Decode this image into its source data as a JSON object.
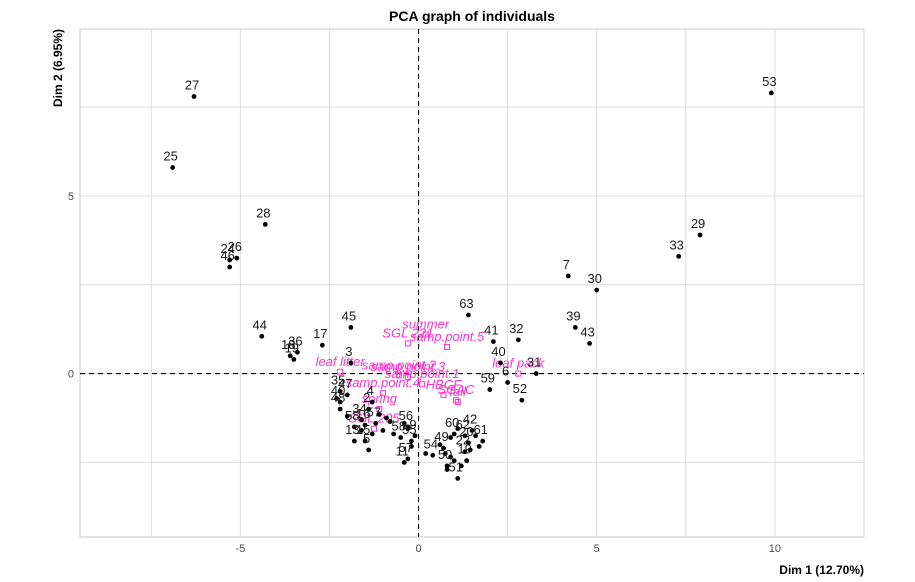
{
  "chart_data": {
    "type": "scatter",
    "title": "PCA graph of individuals",
    "xlabel": "Dim 1 (12.70%)",
    "ylabel": "Dim 2 (6.95%)",
    "xlim": [
      -9.5,
      12.5
    ],
    "ylim": [
      -4.6,
      9.7
    ],
    "xticks": [
      -5,
      0,
      5,
      10
    ],
    "yticks": [
      0,
      5
    ],
    "grid": true,
    "reference_lines": {
      "x": 0,
      "y": 0
    },
    "colors": {
      "individuals": "#000000",
      "supplementary": "#ff33cc",
      "grid": "#dcdcdc"
    },
    "individuals": [
      {
        "label": "27",
        "x": -6.3,
        "y": 7.8
      },
      {
        "label": "25",
        "x": -6.9,
        "y": 5.8
      },
      {
        "label": "28",
        "x": -4.3,
        "y": 4.2
      },
      {
        "label": "26",
        "x": -5.1,
        "y": 3.25
      },
      {
        "label": "24",
        "x": -5.3,
        "y": 3.2
      },
      {
        "label": "46",
        "x": -5.3,
        "y": 3.0
      },
      {
        "label": "44",
        "x": -4.4,
        "y": 1.05
      },
      {
        "label": "18",
        "x": -3.6,
        "y": 0.5
      },
      {
        "label": "36",
        "x": -3.4,
        "y": 0.6
      },
      {
        "label": "19",
        "x": -3.5,
        "y": 0.4
      },
      {
        "label": "17",
        "x": -2.7,
        "y": 0.8
      },
      {
        "label": "45",
        "x": -1.9,
        "y": 1.3
      },
      {
        "label": "3",
        "x": -1.9,
        "y": 0.3
      },
      {
        "label": "35",
        "x": -2.2,
        "y": -0.5
      },
      {
        "label": "47",
        "x": -2.0,
        "y": -0.6
      },
      {
        "label": "40",
        "x": -2.2,
        "y": -0.8
      },
      {
        "label": "48",
        "x": -2.2,
        "y": -1.0
      },
      {
        "label": "4",
        "x": -1.3,
        "y": -0.8
      },
      {
        "label": "2",
        "x": -1.4,
        "y": -1.0
      },
      {
        "label": "34",
        "x": -1.6,
        "y": -1.3
      },
      {
        "label": "58",
        "x": -1.8,
        "y": -1.5
      },
      {
        "label": "16",
        "x": -1.5,
        "y": -1.45
      },
      {
        "label": "57",
        "x": -1.2,
        "y": -1.4
      },
      {
        "label": "13",
        "x": -1.8,
        "y": -1.9
      },
      {
        "label": "15",
        "x": -1.5,
        "y": -1.9
      },
      {
        "label": "5",
        "x": -1.4,
        "y": -2.15
      },
      {
        "label": "56",
        "x": -0.3,
        "y": -1.5
      },
      {
        "label": "58",
        "x": -0.5,
        "y": -1.8
      },
      {
        "label": "55",
        "x": -0.2,
        "y": -1.9
      },
      {
        "label": "57",
        "x": -0.3,
        "y": -2.4
      },
      {
        "label": "11",
        "x": -0.4,
        "y": -2.5
      },
      {
        "label": "9",
        "x": -0.1,
        "y": -1.75
      },
      {
        "label": "54",
        "x": 0.4,
        "y": -2.3
      },
      {
        "label": "49",
        "x": 0.7,
        "y": -2.1
      },
      {
        "label": "50",
        "x": 0.8,
        "y": -2.6
      },
      {
        "label": "51",
        "x": 1.1,
        "y": -2.95
      },
      {
        "label": "60",
        "x": 1.0,
        "y": -1.7
      },
      {
        "label": "62",
        "x": 1.3,
        "y": -1.75
      },
      {
        "label": "20",
        "x": 1.4,
        "y": -1.95
      },
      {
        "label": "22",
        "x": 1.3,
        "y": -2.2
      },
      {
        "label": "19",
        "x": 1.35,
        "y": -2.45
      },
      {
        "label": "42",
        "x": 1.5,
        "y": -1.6
      },
      {
        "label": "61",
        "x": 1.8,
        "y": -1.9
      },
      {
        "label": "59",
        "x": 2.0,
        "y": -0.45
      },
      {
        "label": "6",
        "x": 2.5,
        "y": -0.25
      },
      {
        "label": "52",
        "x": 2.9,
        "y": -0.75
      },
      {
        "label": "31",
        "x": 3.3,
        "y": 0.0
      },
      {
        "label": "40",
        "x": 2.3,
        "y": 0.3
      },
      {
        "label": "41",
        "x": 2.1,
        "y": 0.9
      },
      {
        "label": "63",
        "x": 1.4,
        "y": 1.65
      },
      {
        "label": "32",
        "x": 2.8,
        "y": 0.95
      },
      {
        "label": "39",
        "x": 4.4,
        "y": 1.3
      },
      {
        "label": "43",
        "x": 4.8,
        "y": 0.85
      },
      {
        "label": "7",
        "x": 4.2,
        "y": 2.75
      },
      {
        "label": "30",
        "x": 5.0,
        "y": 2.35
      },
      {
        "label": "33",
        "x": 7.3,
        "y": 3.3
      },
      {
        "label": "29",
        "x": 7.9,
        "y": 3.9
      },
      {
        "label": "53",
        "x": 9.9,
        "y": 7.9
      }
    ],
    "unlabeled_points": [
      {
        "x": -1.1,
        "y": -1.15
      },
      {
        "x": -0.9,
        "y": -1.25
      },
      {
        "x": -0.8,
        "y": -1.35
      },
      {
        "x": -1.0,
        "y": -1.6
      },
      {
        "x": -0.7,
        "y": -1.7
      },
      {
        "x": -1.3,
        "y": -1.7
      },
      {
        "x": -1.6,
        "y": -1.6
      },
      {
        "x": -0.4,
        "y": -1.4
      },
      {
        "x": -0.3,
        "y": -1.55
      },
      {
        "x": -2.0,
        "y": -1.2
      },
      {
        "x": -2.3,
        "y": -0.7
      },
      {
        "x": 0.9,
        "y": -1.8
      },
      {
        "x": 1.1,
        "y": -1.55
      },
      {
        "x": 1.6,
        "y": -1.75
      },
      {
        "x": 1.7,
        "y": -2.05
      },
      {
        "x": 0.6,
        "y": -2.0
      },
      {
        "x": 0.75,
        "y": -2.25
      },
      {
        "x": 0.9,
        "y": -2.35
      },
      {
        "x": 1.0,
        "y": -2.45
      },
      {
        "x": 1.2,
        "y": -2.6
      },
      {
        "x": 0.8,
        "y": -2.7
      },
      {
        "x": 1.45,
        "y": -2.15
      },
      {
        "x": 0.2,
        "y": -2.25
      },
      {
        "x": -0.2,
        "y": -2.05
      }
    ],
    "supplementary": [
      {
        "label": "SGL 221",
        "x": -0.3,
        "y": 0.85
      },
      {
        "label": "summer",
        "x": 0.2,
        "y": 1.1
      },
      {
        "label": "samp.point.5",
        "x": 0.8,
        "y": 0.75
      },
      {
        "label": "leaf litter",
        "x": -2.2,
        "y": 0.05
      },
      {
        "label": "samp.point.2",
        "x": -0.55,
        "y": -0.05
      },
      {
        "label": "samp.point.3",
        "x": -0.3,
        "y": -0.1
      },
      {
        "label": "samp.point.4",
        "x": -1.0,
        "y": -0.55
      },
      {
        "label": "samp.point.1",
        "x": 0.1,
        "y": -0.3
      },
      {
        "label": "leaf pack",
        "x": 2.8,
        "y": 0.0
      },
      {
        "label": "HBCF",
        "x": 0.7,
        "y": -0.6
      },
      {
        "label": "fall",
        "x": 1.1,
        "y": -0.8
      },
      {
        "label": "SGAC",
        "x": 1.05,
        "y": -0.75
      },
      {
        "label": "spring",
        "x": -1.1,
        "y": -1.0
      },
      {
        "label": "SGL 205",
        "x": -1.25,
        "y": -1.55
      }
    ]
  }
}
